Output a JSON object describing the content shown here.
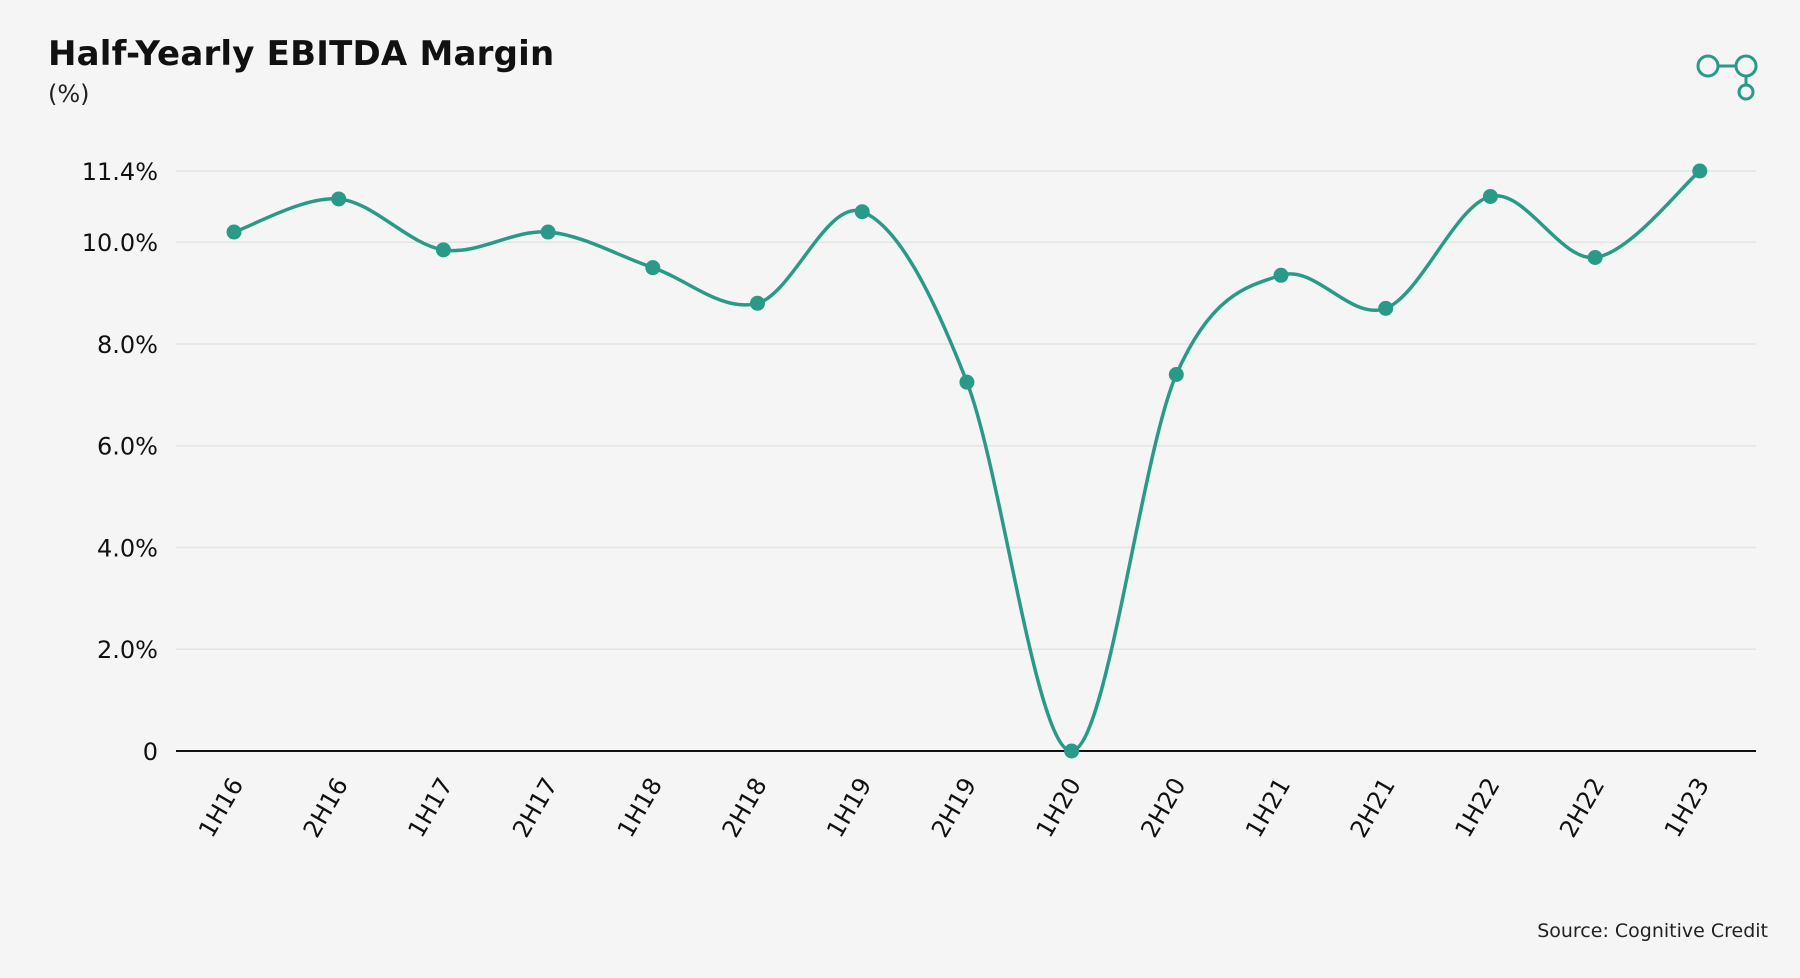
{
  "header": {
    "title": "Half-Yearly EBITDA Margin",
    "subtitle": "(%)"
  },
  "footer": {
    "source": "Source: Cognitive Credit"
  },
  "colors": {
    "series": "#2a9a88",
    "axis": "#111111",
    "grid": "#e4e4e4"
  },
  "chart_data": {
    "type": "line",
    "title": "Half-Yearly EBITDA Margin",
    "subtitle": "(%)",
    "xlabel": "",
    "ylabel": "",
    "categories": [
      "1H16",
      "2H16",
      "1H17",
      "2H17",
      "1H18",
      "2H18",
      "1H19",
      "2H19",
      "1H20",
      "2H20",
      "1H21",
      "2H21",
      "1H22",
      "2H22",
      "1H23"
    ],
    "values": [
      10.2,
      10.85,
      9.85,
      10.2,
      9.5,
      8.8,
      10.6,
      7.25,
      0.0,
      7.4,
      9.35,
      8.7,
      10.9,
      9.7,
      11.4
    ],
    "yticks": [
      0,
      2,
      4,
      6,
      8,
      10,
      11.4
    ],
    "ytick_labels": [
      "0",
      "2.0%",
      "4.0%",
      "6.0%",
      "8.0%",
      "10.0%",
      "11.4%"
    ],
    "ylim": [
      0,
      11.4
    ],
    "grid": true,
    "smooth": true,
    "legend": "none"
  }
}
